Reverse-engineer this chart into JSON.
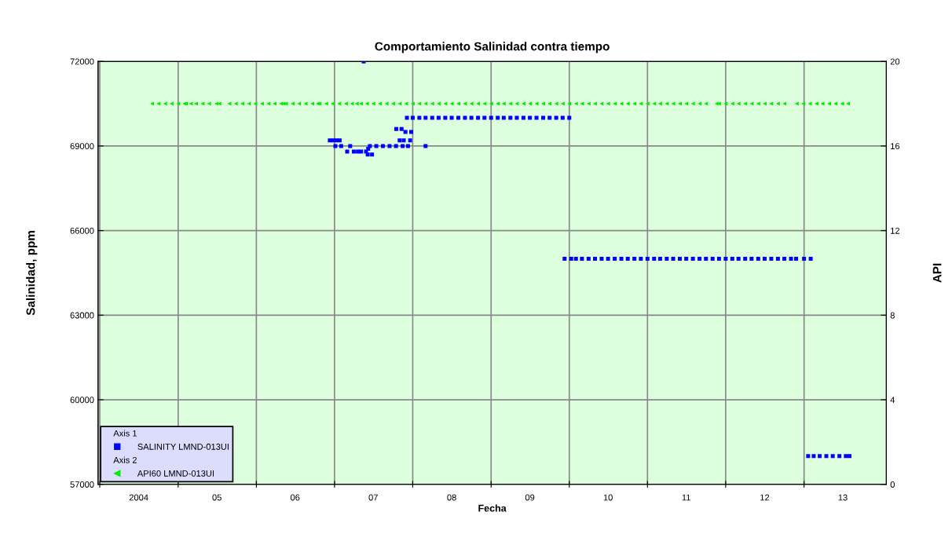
{
  "chart_data": {
    "type": "scatter",
    "title": "Comportamiento Salinidad contra tiempo",
    "xlabel": "Fecha",
    "ylabel": "Salinidad, ppm",
    "y2label": "API",
    "annotations": [
      "Axis 1",
      "Axis 2"
    ],
    "xlim": [
      "2003-12-24",
      "2014-01-20"
    ],
    "xticks": [
      {
        "value": "2004-01-01",
        "label": null
      },
      {
        "value": "2004-07-01",
        "label": "2004"
      },
      {
        "value": "2005-01-01",
        "label": null
      },
      {
        "value": "2005-07-01",
        "label": "05"
      },
      {
        "value": "2006-01-01",
        "label": null
      },
      {
        "value": "2006-07-01",
        "label": "06"
      },
      {
        "value": "2007-01-01",
        "label": null
      },
      {
        "value": "2007-07-01",
        "label": "07"
      },
      {
        "value": "2008-01-01",
        "label": null
      },
      {
        "value": "2008-07-01",
        "label": "08"
      },
      {
        "value": "2009-01-01",
        "label": null
      },
      {
        "value": "2009-07-01",
        "label": "09"
      },
      {
        "value": "2010-01-01",
        "label": null
      },
      {
        "value": "2010-07-01",
        "label": "10"
      },
      {
        "value": "2011-01-01",
        "label": null
      },
      {
        "value": "2011-07-01",
        "label": "11"
      },
      {
        "value": "2012-01-01",
        "label": null
      },
      {
        "value": "2012-07-01",
        "label": "12"
      },
      {
        "value": "2013-01-01",
        "label": null
      },
      {
        "value": "2013-07-01",
        "label": "13"
      }
    ],
    "ylim": [
      57000,
      72000
    ],
    "yticks": [
      57000,
      60000,
      63000,
      66000,
      69000,
      72000
    ],
    "y2lim": [
      0,
      20
    ],
    "y2ticks": [
      0,
      4,
      8,
      12,
      16,
      20
    ],
    "grid": true,
    "legend": "bottom left",
    "series": [
      {
        "name": "SALINITY LMND-013UI",
        "color": "#0000ff",
        "marker": "square",
        "x": [
          "2007-05-17",
          "2006-12-10",
          "2006-12-25",
          "2007-01-10",
          "2007-01-25",
          "2007-01-05",
          "2007-02-01",
          "2007-03-15",
          "2007-03-01",
          "2007-04-01",
          "2007-04-20",
          "2007-05-05",
          "2007-05-28",
          "2007-06-05",
          "2007-06-25",
          "2007-06-07",
          "2007-06-15",
          "2007-07-15",
          "2007-08-15",
          "2007-09-15",
          "2007-10-15",
          "2007-11-15",
          "2007-12-10",
          "2007-10-16",
          "2007-11-10",
          "2007-11-01",
          "2007-11-20",
          "2007-12-20",
          "2007-11-28",
          "2007-12-25",
          "2007-12-05",
          "2008-01",
          "2008-02",
          "2008-03",
          "2008-04",
          "2008-05",
          "2008-06",
          "2008-07",
          "2008-08",
          "2008-09",
          "2008-10",
          "2008-11",
          "2008-12",
          "2009-01",
          "2009-02",
          "2009-03",
          "2009-04",
          "2009-05",
          "2009-06",
          "2009-07",
          "2009-08",
          "2009-09",
          "2009-10",
          "2009-11",
          "2009-12",
          "2010-01",
          "2008-03-01",
          "2009-12-10",
          "2010-01-10",
          "2010-02",
          "2010-03",
          "2010-04",
          "2010-05",
          "2010-06",
          "2010-07",
          "2010-08",
          "2010-09",
          "2010-10",
          "2010-11",
          "2010-12",
          "2011-01",
          "2011-02",
          "2011-03",
          "2011-04",
          "2011-05",
          "2011-06",
          "2011-07",
          "2011-08",
          "2011-09",
          "2011-10",
          "2011-11",
          "2011-12",
          "2012-01",
          "2012-02",
          "2012-03",
          "2012-04",
          "2012-05",
          "2012-06",
          "2012-07",
          "2012-08",
          "2012-09",
          "2012-10",
          "2012-11",
          "2012-11-25",
          "2013-01-01",
          "2013-02-01",
          "2013-01-20",
          "2013-02-15",
          "2013-03-15",
          "2013-04-15",
          "2013-05-15",
          "2013-06-15",
          "2013-07-15",
          "2013-08-01"
        ],
        "values": [
          72000,
          69200,
          69200,
          69200,
          69200,
          69000,
          69000,
          69000,
          68800,
          68800,
          68800,
          68800,
          68800,
          68700,
          68700,
          68900,
          69000,
          69000,
          69000,
          69000,
          69000,
          69000,
          69000,
          69600,
          69600,
          69200,
          69200,
          69200,
          69500,
          69500,
          70000,
          70000,
          70000,
          70000,
          70000,
          70000,
          70000,
          70000,
          70000,
          70000,
          70000,
          70000,
          70000,
          70000,
          70000,
          70000,
          70000,
          70000,
          70000,
          70000,
          70000,
          70000,
          70000,
          70000,
          70000,
          70000,
          69000,
          65000,
          65000,
          65000,
          65000,
          65000,
          65000,
          65000,
          65000,
          65000,
          65000,
          65000,
          65000,
          65000,
          65000,
          65000,
          65000,
          65000,
          65000,
          65000,
          65000,
          65000,
          65000,
          65000,
          65000,
          65000,
          65000,
          65000,
          65000,
          65000,
          65000,
          65000,
          65000,
          65000,
          65000,
          65000,
          65000,
          65000,
          65000,
          65000,
          58000,
          58000,
          58000,
          58000,
          58000,
          58000,
          58000,
          58000
        ]
      },
      {
        "name": "API60 LMND-013UI",
        "color": "#00ee00",
        "marker": "triangle",
        "axis": "y2",
        "x": [
          "2004-09-01",
          "2004-10-01",
          "2004-11-01",
          "2004-12-01",
          "2005-01-01",
          "2005-01-30",
          "2005-02-06",
          "2005-03-01",
          "2005-03-25",
          "2005-04-25",
          "2005-05-25",
          "2005-06-28",
          "2005-07-12",
          "2005-08-28",
          "2005-09-27",
          "2005-10-27",
          "2005-11-27",
          "2005-12-27",
          "2006-01-27",
          "2006-02-27",
          "2006-03-27",
          "2006-04-27",
          "2006-05-08",
          "2006-05-19",
          "2006-06-19",
          "2006-07-19",
          "2006-08-19",
          "2006-09-19",
          "2006-10-15",
          "2006-10-23",
          "2006-11-23",
          "2006-12-23",
          "2007-01-23",
          "2007-02-23",
          "2007-03-23",
          "2007-04-15",
          "2007-05-04",
          "2007-06",
          "2007-07",
          "2007-08",
          "2007-09",
          "2007-10",
          "2007-11",
          "2007-12",
          "2008-01",
          "2008-02",
          "2008-03",
          "2008-04",
          "2008-05",
          "2008-06",
          "2008-07",
          "2008-08",
          "2008-09",
          "2008-10",
          "2008-11",
          "2008-12",
          "2009-01",
          "2009-02",
          "2009-03",
          "2009-04",
          "2009-05",
          "2009-06",
          "2009-07",
          "2009-08",
          "2009-09",
          "2009-10",
          "2009-11",
          "2009-12",
          "2010-01",
          "2010-02",
          "2010-03",
          "2010-04",
          "2010-05",
          "2010-06",
          "2010-07",
          "2010-08",
          "2010-09",
          "2010-10",
          "2010-11",
          "2010-12",
          "2011-01",
          "2011-02",
          "2011-03",
          "2011-04",
          "2011-05",
          "2011-06",
          "2011-07",
          "2011-08",
          "2011-09",
          "2011-10",
          "2011-11-20",
          "2011-12-01",
          "2012-01",
          "2012-02",
          "2012-03",
          "2012-04",
          "2012-05",
          "2012-06",
          "2012-07",
          "2012-08",
          "2012-09",
          "2012-10",
          "2012-11-28",
          "2012-12-28",
          "2013-01-28",
          "2013-02-28",
          "2013-03-28",
          "2013-04-28",
          "2013-05-28",
          "2013-06-28",
          "2013-07-25"
        ],
        "values": [
          18,
          18,
          18,
          18,
          18,
          18,
          18,
          18,
          18,
          18,
          18,
          18,
          18,
          18,
          18,
          18,
          18,
          18,
          18,
          18,
          18,
          18,
          18,
          18,
          18,
          18,
          18,
          18,
          18,
          18,
          18,
          18,
          18,
          18,
          18,
          18,
          18,
          18,
          18,
          18,
          18,
          18,
          18,
          18,
          18,
          18,
          18,
          18,
          18,
          18,
          18,
          18,
          18,
          18,
          18,
          18,
          18,
          18,
          18,
          18,
          18,
          18,
          18,
          18,
          18,
          18,
          18,
          18,
          18,
          18,
          18,
          18,
          18,
          18,
          18,
          18,
          18,
          18,
          18,
          18,
          18,
          18,
          18,
          18,
          18,
          18,
          18,
          18,
          18,
          18,
          18,
          18,
          18,
          18,
          18,
          18,
          18,
          18,
          18,
          18,
          18,
          18,
          18,
          18,
          18,
          18,
          18,
          18,
          18,
          18,
          18
        ]
      }
    ]
  }
}
